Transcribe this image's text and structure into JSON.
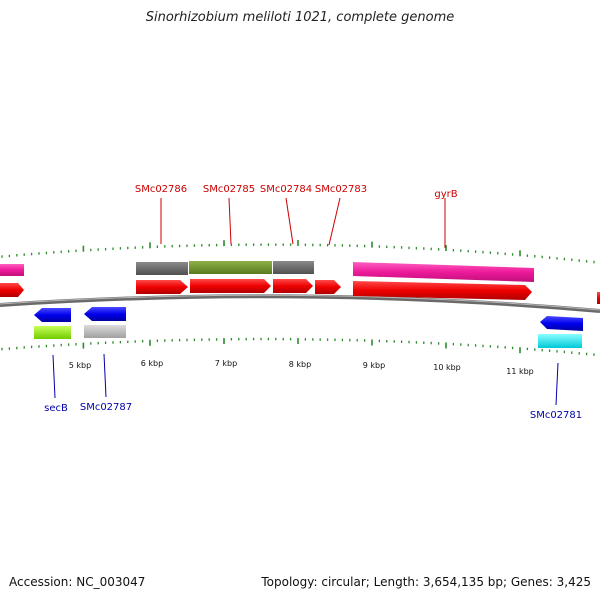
{
  "title": "Sinorhizobium meliloti 1021, complete genome",
  "footer": {
    "accession": "Accession: NC_003047",
    "summary": "Topology: circular; Length: 3,654,135 bp; Genes: 3,425"
  },
  "colors": {
    "backbone": "#808080",
    "tick": "#2e8b2e",
    "label_top": "#cc0000",
    "label_bottom": "#0000aa"
  },
  "ticks": [
    "5 kbp",
    "6 kbp",
    "7 kbp",
    "8 kbp",
    "9 kbp",
    "10 kbp",
    "11 kbp"
  ],
  "top_labels": [
    "SMc02786",
    "SMc02785",
    "SMc02784",
    "SMc02783",
    "gyrB"
  ],
  "bottom_labels": [
    "secB",
    "SMc02787",
    "SMc02781"
  ]
}
